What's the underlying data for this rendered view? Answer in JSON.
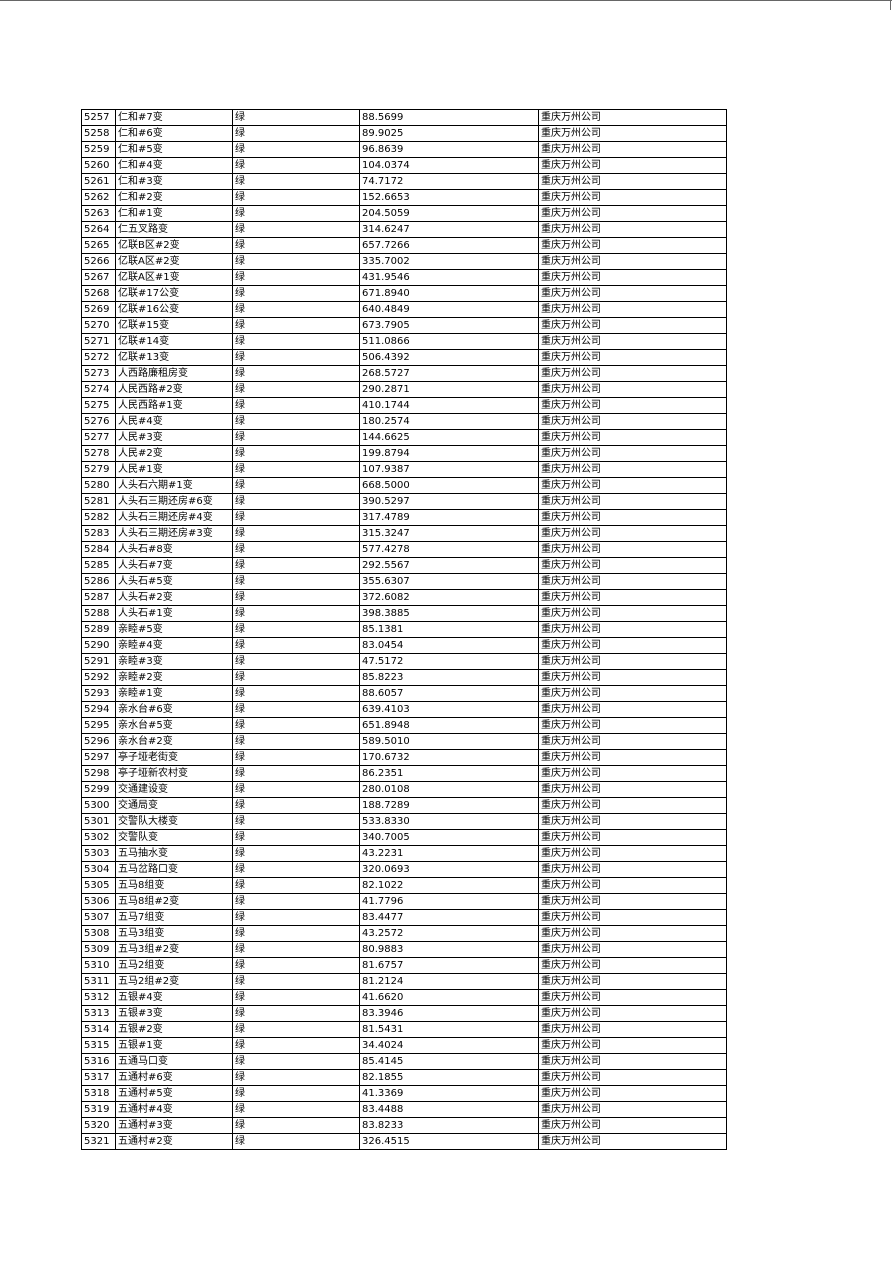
{
  "table": {
    "rows": [
      [
        "5257",
        "仁和#7变",
        "绿",
        "88.5699",
        "重庆万州公司"
      ],
      [
        "5258",
        "仁和#6变",
        "绿",
        "89.9025",
        "重庆万州公司"
      ],
      [
        "5259",
        "仁和#5变",
        "绿",
        "96.8639",
        "重庆万州公司"
      ],
      [
        "5260",
        "仁和#4变",
        "绿",
        "104.0374",
        "重庆万州公司"
      ],
      [
        "5261",
        "仁和#3变",
        "绿",
        "74.7172",
        "重庆万州公司"
      ],
      [
        "5262",
        "仁和#2变",
        "绿",
        "152.6653",
        "重庆万州公司"
      ],
      [
        "5263",
        "仁和#1变",
        "绿",
        "204.5059",
        "重庆万州公司"
      ],
      [
        "5264",
        "仁五叉路变",
        "绿",
        "314.6247",
        "重庆万州公司"
      ],
      [
        "5265",
        "亿联B区#2变",
        "绿",
        "657.7266",
        "重庆万州公司"
      ],
      [
        "5266",
        "亿联A区#2变",
        "绿",
        "335.7002",
        "重庆万州公司"
      ],
      [
        "5267",
        "亿联A区#1变",
        "绿",
        "431.9546",
        "重庆万州公司"
      ],
      [
        "5268",
        "亿联#17公变",
        "绿",
        "671.8940",
        "重庆万州公司"
      ],
      [
        "5269",
        "亿联#16公变",
        "绿",
        "640.4849",
        "重庆万州公司"
      ],
      [
        "5270",
        "亿联#15变",
        "绿",
        "673.7905",
        "重庆万州公司"
      ],
      [
        "5271",
        "亿联#14变",
        "绿",
        "511.0866",
        "重庆万州公司"
      ],
      [
        "5272",
        "亿联#13变",
        "绿",
        "506.4392",
        "重庆万州公司"
      ],
      [
        "5273",
        "人西路廉租房变",
        "绿",
        "268.5727",
        "重庆万州公司"
      ],
      [
        "5274",
        "人民西路#2变",
        "绿",
        "290.2871",
        "重庆万州公司"
      ],
      [
        "5275",
        "人民西路#1变",
        "绿",
        "410.1744",
        "重庆万州公司"
      ],
      [
        "5276",
        "人民#4变",
        "绿",
        "180.2574",
        "重庆万州公司"
      ],
      [
        "5277",
        "人民#3变",
        "绿",
        "144.6625",
        "重庆万州公司"
      ],
      [
        "5278",
        "人民#2变",
        "绿",
        "199.8794",
        "重庆万州公司"
      ],
      [
        "5279",
        "人民#1变",
        "绿",
        "107.9387",
        "重庆万州公司"
      ],
      [
        "5280",
        "人头石六期#1变",
        "绿",
        "668.5000",
        "重庆万州公司"
      ],
      [
        "5281",
        "人头石三期还房#6变",
        "绿",
        "390.5297",
        "重庆万州公司"
      ],
      [
        "5282",
        "人头石三期还房#4变",
        "绿",
        "317.4789",
        "重庆万州公司"
      ],
      [
        "5283",
        "人头石三期还房#3变",
        "绿",
        "315.3247",
        "重庆万州公司"
      ],
      [
        "5284",
        "人头石#8变",
        "绿",
        "577.4278",
        "重庆万州公司"
      ],
      [
        "5285",
        "人头石#7变",
        "绿",
        "292.5567",
        "重庆万州公司"
      ],
      [
        "5286",
        "人头石#5变",
        "绿",
        "355.6307",
        "重庆万州公司"
      ],
      [
        "5287",
        "人头石#2变",
        "绿",
        "372.6082",
        "重庆万州公司"
      ],
      [
        "5288",
        "人头石#1变",
        "绿",
        "398.3885",
        "重庆万州公司"
      ],
      [
        "5289",
        "亲睦#5变",
        "绿",
        "85.1381",
        "重庆万州公司"
      ],
      [
        "5290",
        "亲睦#4变",
        "绿",
        "83.0454",
        "重庆万州公司"
      ],
      [
        "5291",
        "亲睦#3变",
        "绿",
        "47.5172",
        "重庆万州公司"
      ],
      [
        "5292",
        "亲睦#2变",
        "绿",
        "85.8223",
        "重庆万州公司"
      ],
      [
        "5293",
        "亲睦#1变",
        "绿",
        "88.6057",
        "重庆万州公司"
      ],
      [
        "5294",
        "亲水台#6变",
        "绿",
        "639.4103",
        "重庆万州公司"
      ],
      [
        "5295",
        "亲水台#5变",
        "绿",
        "651.8948",
        "重庆万州公司"
      ],
      [
        "5296",
        "亲水台#2变",
        "绿",
        "589.5010",
        "重庆万州公司"
      ],
      [
        "5297",
        "亭子垭老街变",
        "绿",
        "170.6732",
        "重庆万州公司"
      ],
      [
        "5298",
        "亭子垭新农村变",
        "绿",
        "86.2351",
        "重庆万州公司"
      ],
      [
        "5299",
        "交通建设变",
        "绿",
        "280.0108",
        "重庆万州公司"
      ],
      [
        "5300",
        "交通局变",
        "绿",
        "188.7289",
        "重庆万州公司"
      ],
      [
        "5301",
        "交警队大楼变",
        "绿",
        "533.8330",
        "重庆万州公司"
      ],
      [
        "5302",
        "交警队变",
        "绿",
        "340.7005",
        "重庆万州公司"
      ],
      [
        "5303",
        "五马抽水变",
        "绿",
        "43.2231",
        "重庆万州公司"
      ],
      [
        "5304",
        "五马岔路口变",
        "绿",
        "320.0693",
        "重庆万州公司"
      ],
      [
        "5305",
        "五马8组变",
        "绿",
        "82.1022",
        "重庆万州公司"
      ],
      [
        "5306",
        "五马8组#2变",
        "绿",
        "41.7796",
        "重庆万州公司"
      ],
      [
        "5307",
        "五马7组变",
        "绿",
        "83.4477",
        "重庆万州公司"
      ],
      [
        "5308",
        "五马3组变",
        "绿",
        "43.2572",
        "重庆万州公司"
      ],
      [
        "5309",
        "五马3组#2变",
        "绿",
        "80.9883",
        "重庆万州公司"
      ],
      [
        "5310",
        "五马2组变",
        "绿",
        "81.6757",
        "重庆万州公司"
      ],
      [
        "5311",
        "五马2组#2变",
        "绿",
        "81.2124",
        "重庆万州公司"
      ],
      [
        "5312",
        "五银#4变",
        "绿",
        "41.6620",
        "重庆万州公司"
      ],
      [
        "5313",
        "五银#3变",
        "绿",
        "83.3946",
        "重庆万州公司"
      ],
      [
        "5314",
        "五银#2变",
        "绿",
        "81.5431",
        "重庆万州公司"
      ],
      [
        "5315",
        "五银#1变",
        "绿",
        "34.4024",
        "重庆万州公司"
      ],
      [
        "5316",
        "五通马口变",
        "绿",
        "85.4145",
        "重庆万州公司"
      ],
      [
        "5317",
        "五通村#6变",
        "绿",
        "82.1855",
        "重庆万州公司"
      ],
      [
        "5318",
        "五通村#5变",
        "绿",
        "41.3369",
        "重庆万州公司"
      ],
      [
        "5319",
        "五通村#4变",
        "绿",
        "83.4488",
        "重庆万州公司"
      ],
      [
        "5320",
        "五通村#3变",
        "绿",
        "83.8233",
        "重庆万州公司"
      ],
      [
        "5321",
        "五通村#2变",
        "绿",
        "326.4515",
        "重庆万州公司"
      ]
    ]
  }
}
